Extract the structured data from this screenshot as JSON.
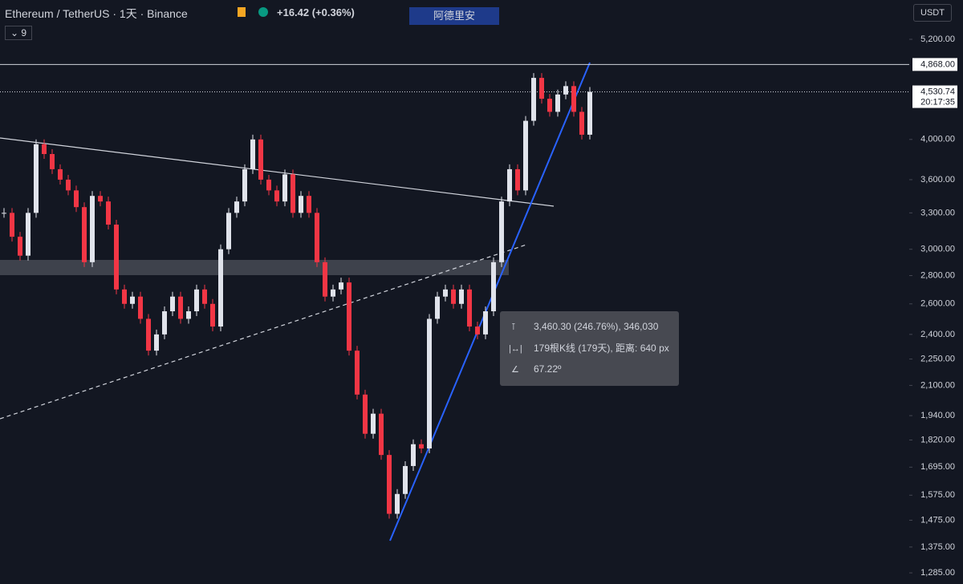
{
  "header": {
    "symbol": "Ethereum / TetherUS · 1天 · Binance",
    "change": "+16.42 (+0.36%)",
    "drawing_name": "阿德里安",
    "interval_count": "9",
    "currency": "USDT"
  },
  "price_axis": {
    "scale": "log",
    "ylim": [
      1248,
      5764
    ],
    "ticks": [
      {
        "value": 5200,
        "label": "5,200.00"
      },
      {
        "value": 4000,
        "label": "4,000.00"
      },
      {
        "value": 3600,
        "label": "3,600.00"
      },
      {
        "value": 3300,
        "label": "3,300.00"
      },
      {
        "value": 3000,
        "label": "3,000.00"
      },
      {
        "value": 2800,
        "label": "2,800.00"
      },
      {
        "value": 2600,
        "label": "2,600.00"
      },
      {
        "value": 2400,
        "label": "2,400.00"
      },
      {
        "value": 2250,
        "label": "2,250.00"
      },
      {
        "value": 2100,
        "label": "2,100.00"
      },
      {
        "value": 1940,
        "label": "1,940.00"
      },
      {
        "value": 1820,
        "label": "1,820.00"
      },
      {
        "value": 1695,
        "label": "1,695.00"
      },
      {
        "value": 1575,
        "label": "1,575.00"
      },
      {
        "value": 1475,
        "label": "1,475.00"
      },
      {
        "value": 1375,
        "label": "1,375.00"
      },
      {
        "value": 1285,
        "label": "1,285.00"
      }
    ]
  },
  "level": {
    "value": 4868,
    "label": "4,868.00"
  },
  "last_price": {
    "value": 4530.74,
    "label": "4,530.74",
    "countdown": "20:17:35"
  },
  "closes": [
    3300,
    3100,
    2950,
    3300,
    3950,
    3850,
    3700,
    3600,
    3500,
    3350,
    2900,
    3450,
    3400,
    3200,
    2700,
    2600,
    2650,
    2500,
    2300,
    2400,
    2550,
    2650,
    2500,
    2550,
    2700,
    2600,
    2450,
    3000,
    3300,
    3400,
    3700,
    4000,
    3600,
    3500,
    3400,
    3650,
    3300,
    3450,
    3300,
    2900,
    2650,
    2700,
    2750,
    2300,
    2050,
    1850,
    1950,
    1750,
    1500,
    1580,
    1700,
    1800,
    1780,
    2500,
    2650,
    2700,
    2600,
    2700,
    2450,
    2400,
    2550,
    2900,
    3400,
    3700,
    3500,
    4200,
    4700,
    4450,
    4300,
    4500,
    4600,
    4300,
    4050,
    4530.74
  ],
  "tooltip": {
    "line1": "3,460.30 (246.76%), 346,030",
    "line2": "179根K线 (179天), 距离: 640 px",
    "line3": "67.22º"
  }
}
